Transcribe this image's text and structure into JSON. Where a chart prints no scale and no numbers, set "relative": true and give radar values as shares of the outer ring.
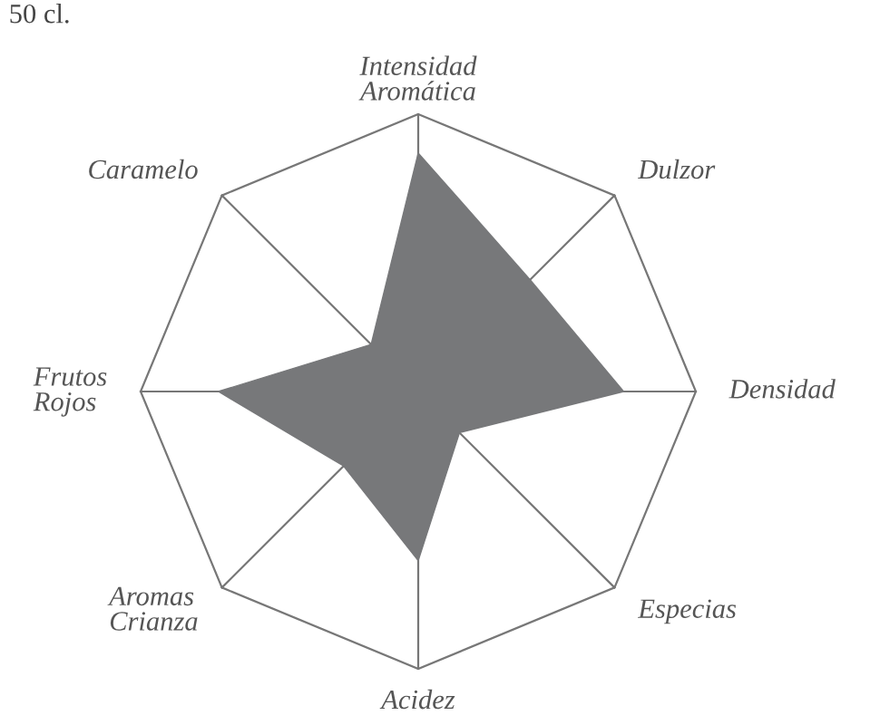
{
  "chart_data": {
    "type": "radar",
    "relative": true,
    "categories": [
      "Intensidad\nAromática",
      "Dulzor",
      "Densidad",
      "Especias",
      "Acidez",
      "Aromas\nCrianza",
      "Frutos\nRojos",
      "Caramelo"
    ],
    "series": [
      {
        "color": "#77787a",
        "values": [
          0.86,
          0.57,
          0.74,
          0.21,
          0.61,
          0.38,
          0.72,
          0.24
        ]
      }
    ],
    "annotations": [
      "50 cl."
    ]
  }
}
